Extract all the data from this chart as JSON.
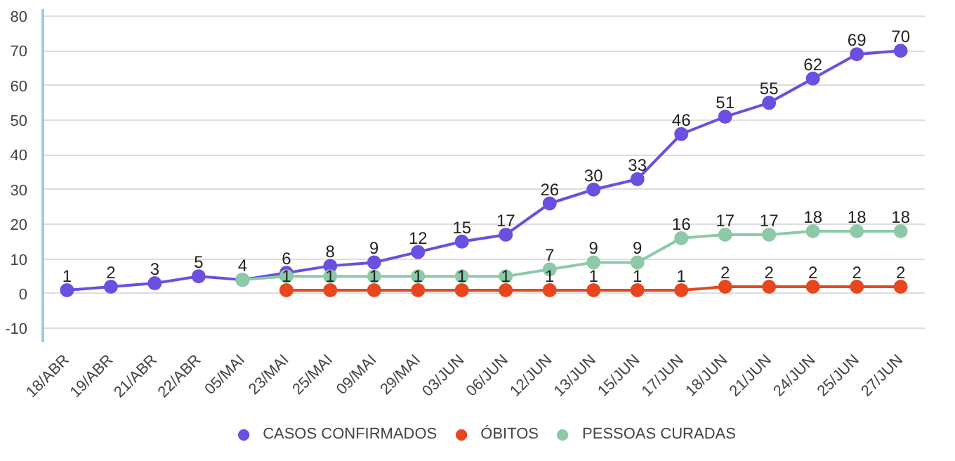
{
  "chart_data": {
    "type": "line",
    "categories": [
      "18/ABR",
      "19/ABR",
      "21/ABR",
      "22/ABR",
      "05/MAI",
      "23/MAI",
      "25/MAI",
      "09/MAI",
      "29/MAI",
      "03/JUN",
      "06/JUN",
      "12/JUN",
      "13/JUN",
      "15/JUN",
      "17/JUN",
      "18/JUN",
      "21/JUN",
      "24/JUN",
      "25/JUN",
      "27/JUN"
    ],
    "series": [
      {
        "name": "CASOS CONFIRMADOS",
        "color": "#6a4fe0",
        "values": [
          1,
          2,
          3,
          5,
          4,
          6,
          8,
          9,
          12,
          15,
          17,
          26,
          30,
          33,
          46,
          51,
          55,
          62,
          69,
          70
        ],
        "value_labels": [
          "1",
          "2",
          "3",
          "5",
          "4",
          "6",
          "8",
          "9",
          "12",
          "15",
          "17",
          "26",
          "30",
          "33",
          "46",
          "51",
          "55",
          "62",
          "69",
          "70"
        ]
      },
      {
        "name": "ÓBITOS",
        "color": "#e8461e",
        "values": [
          null,
          null,
          null,
          null,
          null,
          1,
          1,
          1,
          1,
          1,
          1,
          1,
          1,
          1,
          1,
          2,
          2,
          2,
          2,
          2
        ],
        "value_labels": [
          null,
          null,
          null,
          null,
          null,
          "1",
          "1",
          "1",
          "1",
          "1",
          "1",
          "1",
          "1",
          "1",
          "1",
          "2",
          "2",
          "2",
          "2",
          "2"
        ]
      },
      {
        "name": "PESSOAS CURADAS",
        "color": "#8cc9a8",
        "values": [
          null,
          null,
          null,
          null,
          4,
          5,
          5,
          5,
          5,
          5,
          5,
          7,
          9,
          9,
          16,
          17,
          17,
          18,
          18,
          18
        ],
        "value_labels": [
          null,
          null,
          null,
          null,
          null,
          null,
          null,
          null,
          null,
          null,
          null,
          "7",
          "9",
          "9",
          "16",
          "17",
          "17",
          "18",
          "18",
          "18"
        ]
      }
    ],
    "ylim": [
      -14,
      82
    ],
    "yticks": [
      -10,
      0,
      10,
      20,
      30,
      40,
      50,
      60,
      70,
      80
    ],
    "grid": "y",
    "legend": "bottom",
    "marker": "circle",
    "line_style": "solid"
  }
}
